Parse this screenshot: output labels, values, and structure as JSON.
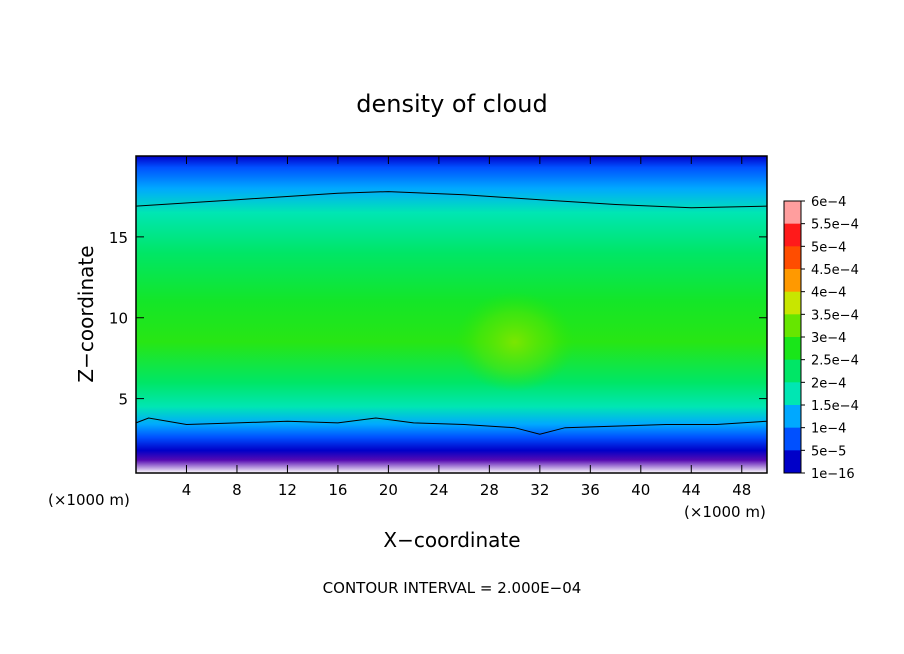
{
  "chart_data": {
    "type": "heatmap",
    "title": "density of cloud",
    "xlabel": "X−coordinate",
    "ylabel": "Z−coordinate",
    "x_unit_label": "(×1000 m)",
    "x_unit_label_left": "(×1000 m)",
    "xlim": [
      0,
      50
    ],
    "ylim": [
      0.4,
      20
    ],
    "x_ticks": [
      4,
      8,
      12,
      16,
      20,
      24,
      28,
      32,
      36,
      40,
      44,
      48
    ],
    "y_ticks": [
      5,
      10,
      15
    ],
    "footer": "CONTOUR INTERVAL = 2.000E−04",
    "colorbar": {
      "levels": [
        {
          "label": "6e−4",
          "value": 0.0006,
          "color": "#ff9e9e"
        },
        {
          "label": "5.5e−4",
          "value": 0.00055,
          "color": "#ff1a1a"
        },
        {
          "label": "5e−4",
          "value": 0.0005,
          "color": "#ff4d00"
        },
        {
          "label": "4.5e−4",
          "value": 0.00045,
          "color": "#ff9900"
        },
        {
          "label": "4e−4",
          "value": 0.0004,
          "color": "#c8e600"
        },
        {
          "label": "3.5e−4",
          "value": 0.00035,
          "color": "#66e600"
        },
        {
          "label": "3e−4",
          "value": 0.0003,
          "color": "#19e619"
        },
        {
          "label": "2.5e−4",
          "value": 0.00025,
          "color": "#00e666"
        },
        {
          "label": "2e−4",
          "value": 0.0002,
          "color": "#00e6b3"
        },
        {
          "label": "1.5e−4",
          "value": 0.00015,
          "color": "#00a8ff"
        },
        {
          "label": "1e−4",
          "value": 0.0001,
          "color": "#0050ff"
        },
        {
          "label": "5e−5",
          "value": 5e-05,
          "color": "#0000c8"
        },
        {
          "label": "1e−16",
          "value": 1e-16,
          "color": "#6a0dad"
        }
      ]
    },
    "field_profile_z": [
      {
        "z": 0.4,
        "value": 0.0
      },
      {
        "z": 1.2,
        "value": 1e-05
      },
      {
        "z": 1.8,
        "value": 5e-05
      },
      {
        "z": 2.6,
        "value": 0.0001
      },
      {
        "z": 3.4,
        "value": 0.00015
      },
      {
        "z": 4.5,
        "value": 0.0002
      },
      {
        "z": 6.0,
        "value": 0.00025
      },
      {
        "z": 8.5,
        "value": 0.00031
      },
      {
        "z": 11.0,
        "value": 0.00029
      },
      {
        "z": 14.0,
        "value": 0.00025
      },
      {
        "z": 16.5,
        "value": 0.0002
      },
      {
        "z": 18.0,
        "value": 0.00015
      },
      {
        "z": 19.3,
        "value": 0.0001
      },
      {
        "z": 20.0,
        "value": 5e-05
      }
    ],
    "local_maximum": {
      "x": 30,
      "z": 8.5,
      "value": 0.00035
    },
    "contour_lines": [
      {
        "level": 0.0002,
        "points": [
          [
            0,
            16.9
          ],
          [
            8,
            17.3
          ],
          [
            16,
            17.7
          ],
          [
            20,
            17.8
          ],
          [
            26,
            17.6
          ],
          [
            32,
            17.3
          ],
          [
            38,
            17.0
          ],
          [
            44,
            16.8
          ],
          [
            50,
            16.9
          ]
        ]
      },
      {
        "level": 0.0002,
        "points": [
          [
            0,
            3.5
          ],
          [
            1,
            3.8
          ],
          [
            4,
            3.4
          ],
          [
            8,
            3.5
          ],
          [
            12,
            3.6
          ],
          [
            16,
            3.5
          ],
          [
            19,
            3.8
          ],
          [
            22,
            3.5
          ],
          [
            26,
            3.4
          ],
          [
            30,
            3.2
          ],
          [
            32,
            2.8
          ],
          [
            34,
            3.2
          ],
          [
            38,
            3.3
          ],
          [
            42,
            3.4
          ],
          [
            46,
            3.4
          ],
          [
            50,
            3.6
          ]
        ]
      }
    ]
  }
}
